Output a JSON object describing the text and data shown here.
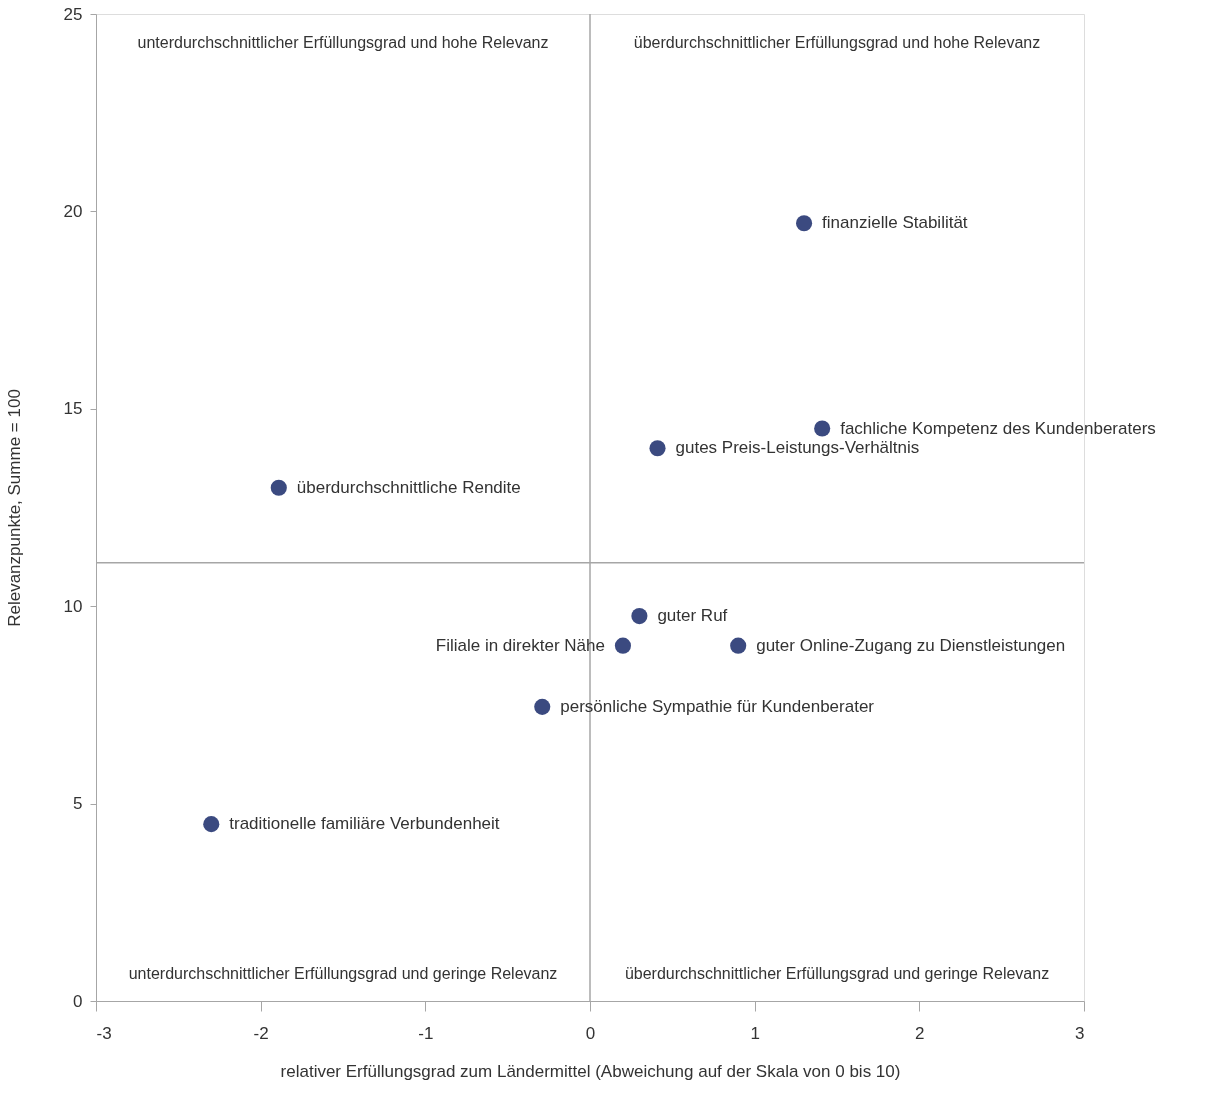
{
  "chart_data": {
    "type": "scatter",
    "xlabel": "relativer Erfüllungsgrad zum Ländermittel (Abweichung auf der Skala von 0 bis 10)",
    "ylabel": "Relevanzpunkte, Summe = 100",
    "xlim": [
      -3,
      3
    ],
    "xticks": [
      -3,
      -2,
      -1,
      0,
      1,
      2,
      3
    ],
    "ylim": [
      0,
      25
    ],
    "yticks": [
      0,
      5,
      10,
      15,
      20,
      25
    ],
    "grid": false,
    "legend": false,
    "marker": "circle",
    "series": [
      {
        "name": "finanzielle Stabilität",
        "color": "#3b4a80",
        "x": [
          1.3
        ],
        "values": [
          19.7
        ]
      },
      {
        "name": "fachliche Kompetenz des Kundenberaters",
        "color": "#3b4a80",
        "x": [
          1.41
        ],
        "values": [
          14.5
        ]
      },
      {
        "name": "gutes Preis-Leistungs-Verhältnis",
        "color": "#3b4a80",
        "x": [
          0.41
        ],
        "values": [
          14.0
        ]
      },
      {
        "name": "überdurchschnittliche Rendite",
        "color": "#3b4a80",
        "x": [
          -1.89
        ],
        "values": [
          13.0
        ]
      },
      {
        "name": "guter Ruf",
        "color": "#3b4a80",
        "x": [
          0.3
        ],
        "values": [
          9.75
        ]
      },
      {
        "name": "Filiale in direkter Nähe",
        "color": "#3b4a80",
        "x": [
          0.2
        ],
        "values": [
          9.0
        ]
      },
      {
        "name": "guter Online-Zugang zu Dienstleistungen",
        "color": "#3b4a80",
        "x": [
          0.9
        ],
        "values": [
          9.0
        ]
      },
      {
        "name": "persönliche Sympathie für Kundenberater",
        "color": "#3b4a80",
        "x": [
          -0.29
        ],
        "values": [
          7.45
        ]
      },
      {
        "name": "traditionelle familiäre Verbundenheit",
        "color": "#3b4a80",
        "x": [
          -2.3
        ],
        "values": [
          4.48
        ]
      }
    ],
    "ref_lines": [
      {
        "axis": "x",
        "value": 0,
        "color": "#a6a6a6"
      },
      {
        "axis": "y",
        "value": 11.1,
        "color": "#a6a6a6"
      }
    ],
    "annotations": [
      "unterdurchschnittlicher Erfüllungsgrad und hohe Relevanz",
      "überdurchschnittlicher Erfüllungsgrad und hohe Relevanz",
      "unterdurchschnittlicher Erfüllungsgrad und geringe Relevanz",
      "überdurchschnittlicher Erfüllungsgrad und geringe Relevanz"
    ]
  }
}
